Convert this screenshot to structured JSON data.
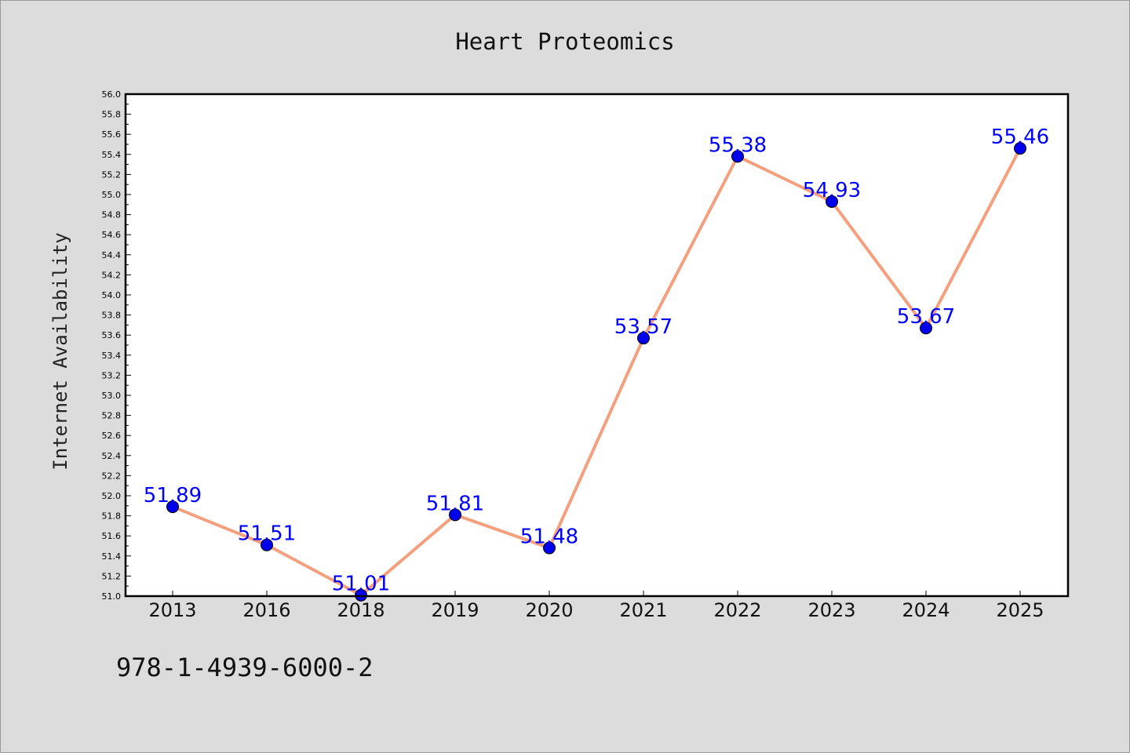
{
  "chart_data": {
    "type": "line",
    "title": "Heart Proteomics",
    "xlabel": "",
    "ylabel": "Internet Availability",
    "categories": [
      "2013",
      "2016",
      "2018",
      "2019",
      "2020",
      "2021",
      "2022",
      "2023",
      "2024",
      "2025"
    ],
    "series": [
      {
        "values": [
          51.89,
          51.51,
          51.01,
          51.81,
          51.48,
          53.57,
          55.38,
          54.93,
          53.67,
          55.46
        ]
      }
    ],
    "data_labels": [
      "51.89",
      "51.51",
      "51.01",
      "51.81",
      "51.48",
      "53.57",
      "55.38",
      "54.93",
      "53.67",
      "55.46"
    ],
    "ylim": [
      51.0,
      56.0
    ],
    "yticks": [
      "51.0",
      "51.2",
      "51.4",
      "51.6",
      "51.8",
      "52.0",
      "52.2",
      "52.4",
      "52.6",
      "52.8",
      "53.0",
      "53.2",
      "53.4",
      "53.6",
      "53.8",
      "54.0",
      "54.2",
      "54.4",
      "54.6",
      "54.8",
      "55.0",
      "55.2",
      "55.4",
      "55.6",
      "55.8",
      "56.0"
    ],
    "grid": false,
    "legend": "none",
    "colors": {
      "line": "#f4a07f",
      "marker": "#0000ee",
      "label": "#0000ff",
      "background": "#dcdcdc",
      "plot_background": "#ffffff"
    }
  },
  "footer": {
    "isbn": "978-1-4939-6000-2"
  }
}
